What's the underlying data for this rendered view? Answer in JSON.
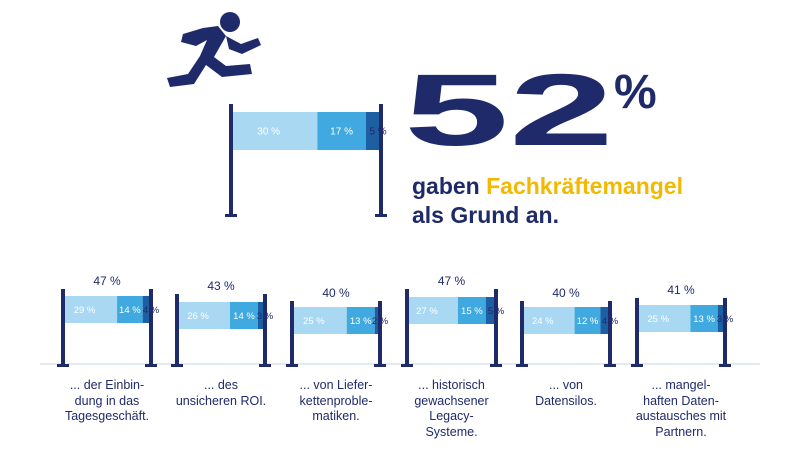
{
  "colors": {
    "navy": "#1f2a6b",
    "segment_light": "#a8d8f2",
    "segment_mid": "#3fa9e0",
    "segment_dark": "#1d5fa3",
    "accent": "#f3b800",
    "divider": "#c9d6e3"
  },
  "icon": "hurdle-runner-icon",
  "headline": {
    "big_number": "52",
    "percent_sign": "%",
    "line1_prefix": "gaben ",
    "line1_highlight": "Fachkräftemangel",
    "line2": "als Grund an."
  },
  "chart_data": [
    {
      "type": "bar",
      "stacked": true,
      "total_label": "",
      "segments": [
        {
          "value": 30,
          "label": "30 %"
        },
        {
          "value": 17,
          "label": "17 %"
        },
        {
          "value": 5,
          "label": "5 %"
        }
      ]
    },
    {
      "type": "bar",
      "stacked": true,
      "total_label": "47 %",
      "segments": [
        {
          "value": 29,
          "label": "29 %"
        },
        {
          "value": 14,
          "label": "14 %"
        },
        {
          "value": 4,
          "label": "4 %"
        }
      ],
      "caption": [
        "... der Einbin-",
        "dung in das",
        "Tagesgeschäft."
      ]
    },
    {
      "type": "bar",
      "stacked": true,
      "total_label": "43 %",
      "segments": [
        {
          "value": 26,
          "label": "26 %"
        },
        {
          "value": 14,
          "label": "14 %"
        },
        {
          "value": 3,
          "label": "3 %"
        }
      ],
      "caption": [
        "... des",
        "unsicheren ROI."
      ]
    },
    {
      "type": "bar",
      "stacked": true,
      "total_label": "40 %",
      "segments": [
        {
          "value": 25,
          "label": "25 %"
        },
        {
          "value": 13,
          "label": "13 %"
        },
        {
          "value": 2,
          "label": "2 %"
        }
      ],
      "caption": [
        "... von Liefer-",
        "kettenproble-",
        "matiken."
      ]
    },
    {
      "type": "bar",
      "stacked": true,
      "total_label": "47 %",
      "segments": [
        {
          "value": 27,
          "label": "27 %"
        },
        {
          "value": 15,
          "label": "15 %"
        },
        {
          "value": 5,
          "label": "5 %"
        }
      ],
      "caption": [
        "... historisch",
        "gewachsener",
        "Legacy-",
        "Systeme."
      ]
    },
    {
      "type": "bar",
      "stacked": true,
      "total_label": "40 %",
      "segments": [
        {
          "value": 24,
          "label": "24 %"
        },
        {
          "value": 12,
          "label": "12 %"
        },
        {
          "value": 4,
          "label": "4 %"
        }
      ],
      "caption": [
        "... von",
        "Datensilos."
      ]
    },
    {
      "type": "bar",
      "stacked": true,
      "total_label": "41 %",
      "segments": [
        {
          "value": 25,
          "label": "25 %"
        },
        {
          "value": 13,
          "label": "13 %"
        },
        {
          "value": 3,
          "label": "3 %"
        }
      ],
      "caption": [
        "... mangel-",
        "haften Daten-",
        "austausches mit",
        "Partnern."
      ]
    }
  ]
}
